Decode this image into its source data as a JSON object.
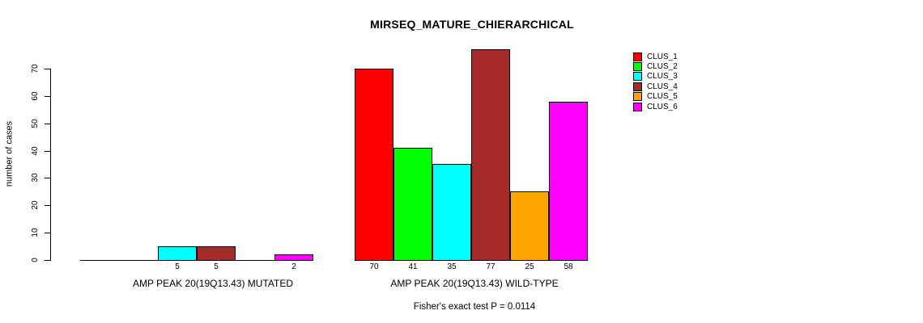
{
  "chart_data": {
    "type": "bar",
    "title": "MIRSEQ_MATURE_CHIERARCHICAL",
    "ylabel": "number of cases",
    "ylim": [
      0,
      70
    ],
    "yticks": [
      0,
      10,
      20,
      30,
      40,
      50,
      60,
      70
    ],
    "grid": false,
    "legend_position": "top-right-outside",
    "categories": [
      "AMP PEAK 20(19Q13.43) MUTATED",
      "AMP PEAK 20(19Q13.43) WILD-TYPE"
    ],
    "series": [
      {
        "name": "CLUS_1",
        "color": "#FF0000",
        "values": [
          0,
          70
        ]
      },
      {
        "name": "CLUS_2",
        "color": "#00FF00",
        "values": [
          0,
          41
        ]
      },
      {
        "name": "CLUS_3",
        "color": "#00FFFF",
        "values": [
          5,
          35
        ]
      },
      {
        "name": "CLUS_4",
        "color": "#A52A2A",
        "values": [
          5,
          77
        ]
      },
      {
        "name": "CLUS_5",
        "color": "#FFA500",
        "values": [
          0,
          25
        ]
      },
      {
        "name": "CLUS_6",
        "color": "#FF00FF",
        "values": [
          2,
          58
        ]
      }
    ],
    "bar_labels_note": "zero-value bars show no numeric label",
    "annotation": "Fisher's exact test P = 0.0114"
  }
}
